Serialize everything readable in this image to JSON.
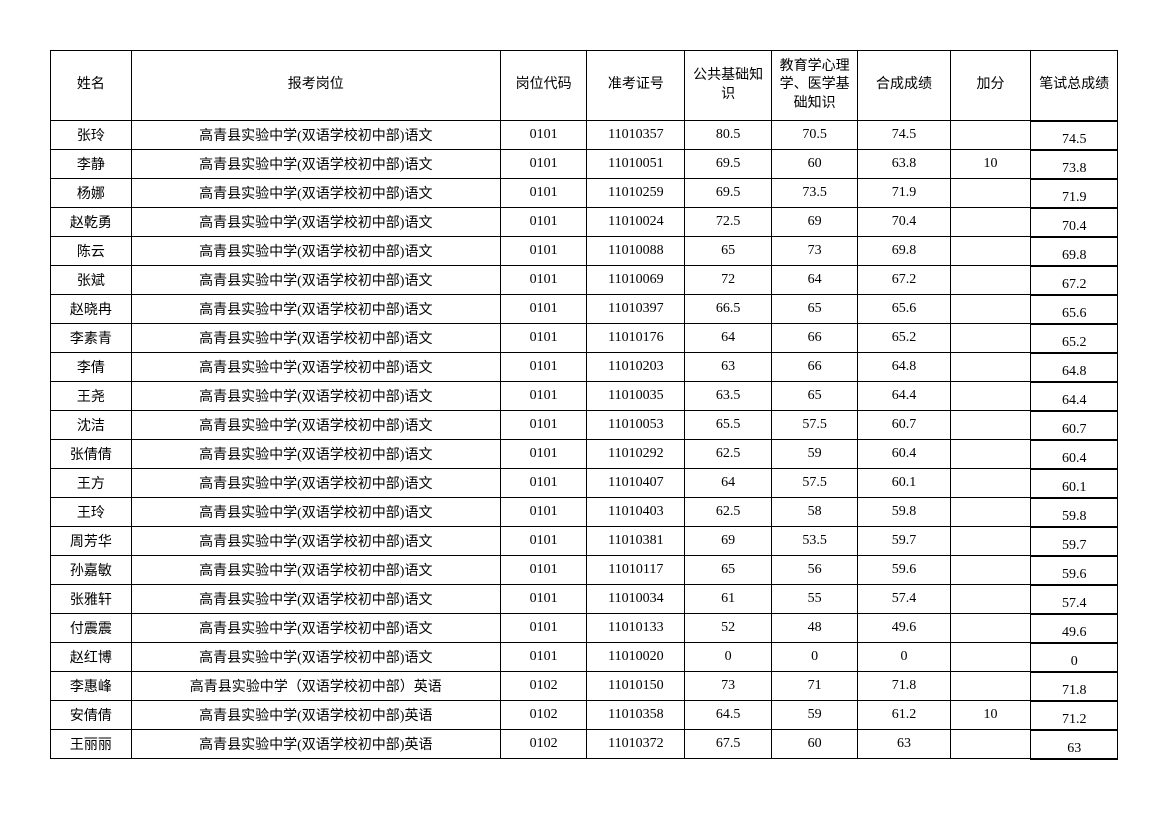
{
  "table": {
    "columns": [
      "姓名",
      "报考岗位",
      "岗位代码",
      "准考证号",
      "公共基础知识",
      "教育学心理学、医学基础知识",
      "合成成绩",
      "加分",
      "笔试总成绩"
    ],
    "col_classes": [
      "col-name",
      "col-position",
      "col-code",
      "col-admit",
      "col-public",
      "col-edu",
      "col-combined",
      "col-bonus",
      "col-total"
    ],
    "rows": [
      [
        "张玲",
        "高青县实验中学(双语学校初中部)语文",
        "0101",
        "11010357",
        "80.5",
        "70.5",
        "74.5",
        "",
        "74.5"
      ],
      [
        "李静",
        "高青县实验中学(双语学校初中部)语文",
        "0101",
        "11010051",
        "69.5",
        "60",
        "63.8",
        "10",
        "73.8"
      ],
      [
        "杨娜",
        "高青县实验中学(双语学校初中部)语文",
        "0101",
        "11010259",
        "69.5",
        "73.5",
        "71.9",
        "",
        "71.9"
      ],
      [
        "赵乾勇",
        "高青县实验中学(双语学校初中部)语文",
        "0101",
        "11010024",
        "72.5",
        "69",
        "70.4",
        "",
        "70.4"
      ],
      [
        "陈云",
        "高青县实验中学(双语学校初中部)语文",
        "0101",
        "11010088",
        "65",
        "73",
        "69.8",
        "",
        "69.8"
      ],
      [
        "张斌",
        "高青县实验中学(双语学校初中部)语文",
        "0101",
        "11010069",
        "72",
        "64",
        "67.2",
        "",
        "67.2"
      ],
      [
        "赵晓冉",
        "高青县实验中学(双语学校初中部)语文",
        "0101",
        "11010397",
        "66.5",
        "65",
        "65.6",
        "",
        "65.6"
      ],
      [
        "李素青",
        "高青县实验中学(双语学校初中部)语文",
        "0101",
        "11010176",
        "64",
        "66",
        "65.2",
        "",
        "65.2"
      ],
      [
        "李倩",
        "高青县实验中学(双语学校初中部)语文",
        "0101",
        "11010203",
        "63",
        "66",
        "64.8",
        "",
        "64.8"
      ],
      [
        "王尧",
        "高青县实验中学(双语学校初中部)语文",
        "0101",
        "11010035",
        "63.5",
        "65",
        "64.4",
        "",
        "64.4"
      ],
      [
        "沈洁",
        "高青县实验中学(双语学校初中部)语文",
        "0101",
        "11010053",
        "65.5",
        "57.5",
        "60.7",
        "",
        "60.7"
      ],
      [
        "张倩倩",
        "高青县实验中学(双语学校初中部)语文",
        "0101",
        "11010292",
        "62.5",
        "59",
        "60.4",
        "",
        "60.4"
      ],
      [
        "王方",
        "高青县实验中学(双语学校初中部)语文",
        "0101",
        "11010407",
        "64",
        "57.5",
        "60.1",
        "",
        "60.1"
      ],
      [
        "王玲",
        "高青县实验中学(双语学校初中部)语文",
        "0101",
        "11010403",
        "62.5",
        "58",
        "59.8",
        "",
        "59.8"
      ],
      [
        "周芳华",
        "高青县实验中学(双语学校初中部)语文",
        "0101",
        "11010381",
        "69",
        "53.5",
        "59.7",
        "",
        "59.7"
      ],
      [
        "孙嘉敏",
        "高青县实验中学(双语学校初中部)语文",
        "0101",
        "11010117",
        "65",
        "56",
        "59.6",
        "",
        "59.6"
      ],
      [
        "张雅轩",
        "高青县实验中学(双语学校初中部)语文",
        "0101",
        "11010034",
        "61",
        "55",
        "57.4",
        "",
        "57.4"
      ],
      [
        "付震震",
        "高青县实验中学(双语学校初中部)语文",
        "0101",
        "11010133",
        "52",
        "48",
        "49.6",
        "",
        "49.6"
      ],
      [
        "赵红博",
        "高青县实验中学(双语学校初中部)语文",
        "0101",
        "11010020",
        "0",
        "0",
        "0",
        "",
        "0"
      ],
      [
        "李惠峰",
        "高青县实验中学（双语学校初中部）英语",
        "0102",
        "11010150",
        "73",
        "71",
        "71.8",
        "",
        "71.8"
      ],
      [
        "安倩倩",
        "高青县实验中学(双语学校初中部)英语",
        "0102",
        "11010358",
        "64.5",
        "59",
        "61.2",
        "10",
        "71.2"
      ],
      [
        "王丽丽",
        "高青县实验中学(双语学校初中部)英语",
        "0102",
        "11010372",
        "67.5",
        "60",
        "63",
        "",
        "63"
      ]
    ]
  }
}
